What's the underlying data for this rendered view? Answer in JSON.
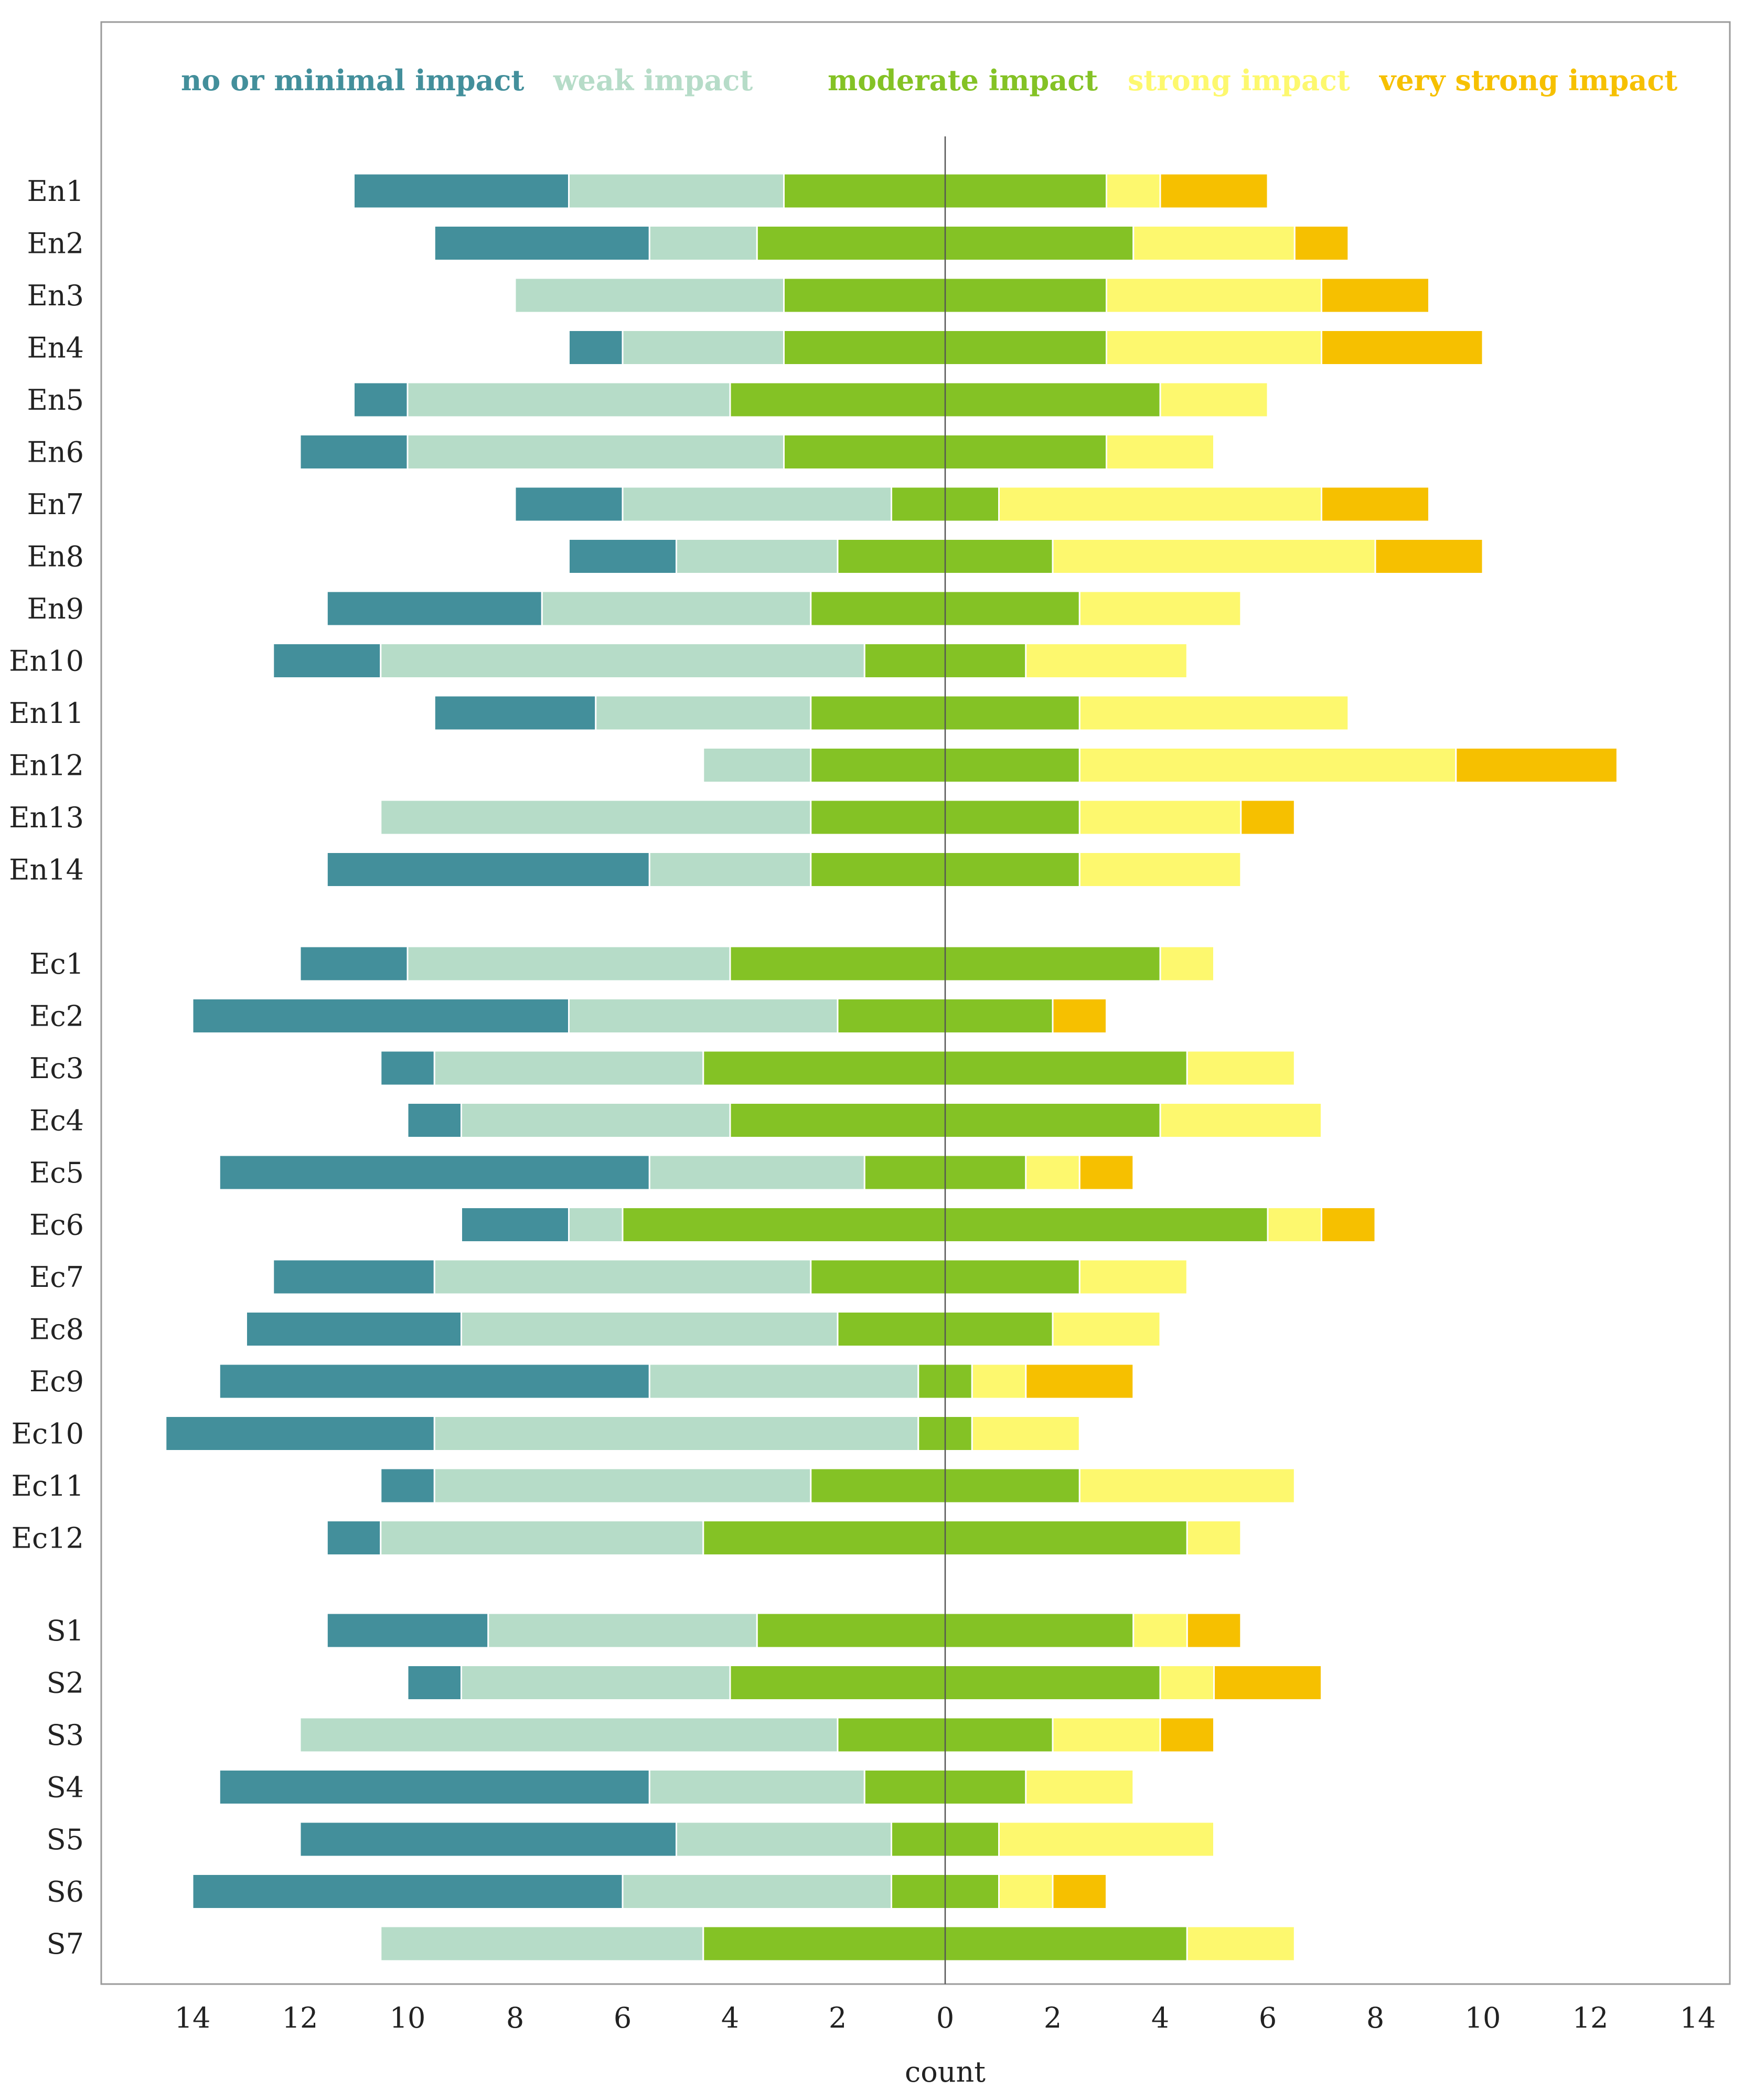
{
  "chart_data": {
    "type": "bar",
    "orientation": "horizontal-diverging",
    "xlabel": "count",
    "x_ticks": [
      "14",
      "12",
      "10",
      "8",
      "6",
      "4",
      "2",
      "0",
      "2",
      "4",
      "6",
      "8",
      "10",
      "12",
      "14"
    ],
    "xlim": [
      -14,
      14
    ],
    "legend_position": "top",
    "colors": [
      "#438f9b",
      "#b6dcc8",
      "#84c225",
      "#fdf86e",
      "#f6c000"
    ],
    "series": [
      {
        "name": "no or minimal impact"
      },
      {
        "name": "weak impact"
      },
      {
        "name": "moderate impact"
      },
      {
        "name": "strong impact"
      },
      {
        "name": "very strong impact"
      }
    ],
    "groups": [
      {
        "categories": [
          "En1",
          "En2",
          "En3",
          "En4",
          "En5",
          "En6",
          "En7",
          "En8",
          "En9",
          "En10",
          "En11",
          "En12",
          "En13",
          "En14"
        ],
        "values": [
          [
            4,
            4,
            6,
            1,
            2
          ],
          [
            4,
            2,
            7,
            3,
            1
          ],
          [
            0,
            5,
            6,
            4,
            2
          ],
          [
            1,
            3,
            6,
            4,
            3
          ],
          [
            1,
            6,
            8,
            2,
            0
          ],
          [
            2,
            7,
            6,
            2,
            0
          ],
          [
            2,
            5,
            2,
            6,
            2
          ],
          [
            2,
            3,
            4,
            6,
            2
          ],
          [
            4,
            5,
            5,
            3,
            0
          ],
          [
            2,
            9,
            3,
            3,
            0
          ],
          [
            3,
            4,
            5,
            5,
            0
          ],
          [
            0,
            2,
            5,
            7,
            3
          ],
          [
            0,
            8,
            5,
            3,
            1
          ],
          [
            6,
            3,
            5,
            3,
            0
          ]
        ]
      },
      {
        "categories": [
          "Ec1",
          "Ec2",
          "Ec3",
          "Ec4",
          "Ec5",
          "Ec6",
          "Ec7",
          "Ec8",
          "Ec9",
          "Ec10",
          "Ec11",
          "Ec12"
        ],
        "values": [
          [
            2,
            6,
            8,
            1,
            0
          ],
          [
            7,
            5,
            4,
            0,
            1
          ],
          [
            1,
            5,
            9,
            2,
            0
          ],
          [
            1,
            5,
            8,
            3,
            0
          ],
          [
            8,
            4,
            3,
            1,
            1
          ],
          [
            2,
            1,
            12,
            1,
            1
          ],
          [
            3,
            7,
            5,
            2,
            0
          ],
          [
            4,
            7,
            4,
            2,
            0
          ],
          [
            8,
            5,
            1,
            1,
            2
          ],
          [
            5,
            9,
            1,
            2,
            0
          ],
          [
            1,
            7,
            5,
            4,
            0
          ],
          [
            1,
            6,
            9,
            1,
            0
          ]
        ]
      },
      {
        "categories": [
          "S1",
          "S2",
          "S3",
          "S4",
          "S5",
          "S6",
          "S7"
        ],
        "values": [
          [
            3,
            5,
            7,
            1,
            1
          ],
          [
            1,
            5,
            8,
            1,
            2
          ],
          [
            0,
            10,
            4,
            2,
            1
          ],
          [
            8,
            4,
            3,
            2,
            0
          ],
          [
            7,
            4,
            2,
            4,
            0
          ],
          [
            8,
            5,
            2,
            1,
            1
          ],
          [
            0,
            6,
            9,
            2,
            0
          ]
        ]
      }
    ]
  }
}
